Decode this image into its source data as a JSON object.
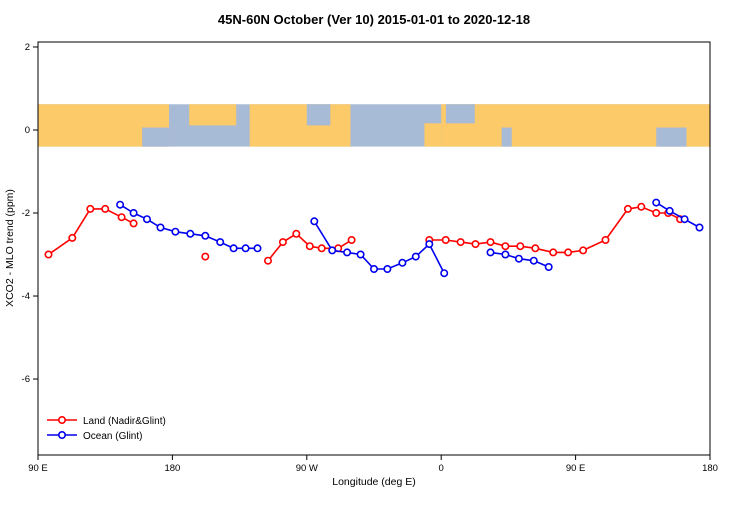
{
  "chart_data": {
    "type": "line",
    "title": "45N-60N October (Ver 10)   2015-01-01 to 2020-12-18",
    "xlabel": "Longitude (deg E)",
    "ylabel": "XCO2 - MLO trend (ppm)",
    "xlim_deg_east": [
      90,
      540
    ],
    "ylim": [
      -7.83,
      2.12
    ],
    "grid": false,
    "x_ticks": [
      {
        "deg": 90,
        "label": "90 E"
      },
      {
        "deg": 180,
        "label": "180"
      },
      {
        "deg": 270,
        "label": "90 W"
      },
      {
        "deg": 360,
        "label": "0"
      },
      {
        "deg": 450,
        "label": "90 E"
      },
      {
        "deg": 540,
        "label": "180"
      }
    ],
    "y_ticks": [
      {
        "value": 2,
        "label": "2"
      },
      {
        "value": 0,
        "label": "0"
      },
      {
        "value": -2,
        "label": "-2"
      },
      {
        "value": -4,
        "label": "-4"
      },
      {
        "value": -6,
        "label": "-6"
      }
    ],
    "map_band": {
      "description": "world coastline strip for 45N-60N drawn across y=0",
      "ppm_top": 0.62,
      "ppm_bottom": -0.4,
      "ocean_color": "#a7bad6",
      "land_color": "#fcca69",
      "land_patches": [
        [
          0.0,
          0.195,
          0.0,
          1.0
        ],
        [
          0.225,
          0.295,
          0.0,
          0.5
        ],
        [
          0.315,
          0.465,
          0.0,
          1.0
        ],
        [
          0.575,
          0.6,
          0.45,
          1.0
        ],
        [
          0.6,
          1.0,
          0.0,
          1.0
        ]
      ],
      "ocean_notches": [
        [
          0.155,
          0.195,
          0.55,
          1.0
        ],
        [
          0.4,
          0.435,
          0.0,
          0.5
        ],
        [
          0.607,
          0.65,
          0.0,
          0.45
        ],
        [
          0.69,
          0.705,
          0.55,
          1.0
        ],
        [
          0.92,
          0.965,
          0.55,
          1.0
        ]
      ]
    },
    "series": [
      {
        "name": "Land (Nadir&Glint)",
        "color": "#ff0000",
        "marker": "open-circle",
        "segments": [
          {
            "lon_deg": [
              97,
              113,
              125,
              135,
              146,
              154
            ],
            "ppm": [
              -3.0,
              -2.6,
              -1.9,
              -1.9,
              -2.1,
              -2.25
            ]
          },
          {
            "lon_deg": [
              202
            ],
            "ppm": [
              -3.05
            ]
          },
          {
            "lon_deg": [
              244,
              254,
              263,
              272,
              280,
              291,
              300
            ],
            "ppm": [
              -3.15,
              -2.7,
              -2.5,
              -2.8,
              -2.85,
              -2.85,
              -2.65
            ]
          },
          {
            "lon_deg": [
              352,
              363,
              373,
              383,
              393,
              403,
              413,
              423,
              435,
              445,
              455,
              470,
              485,
              494,
              504,
              512,
              520
            ],
            "ppm": [
              -2.65,
              -2.65,
              -2.7,
              -2.75,
              -2.7,
              -2.8,
              -2.8,
              -2.85,
              -2.95,
              -2.95,
              -2.9,
              -2.65,
              -1.9,
              -1.85,
              -2.0,
              -2.0,
              -2.15
            ]
          }
        ]
      },
      {
        "name": "Ocean (Glint)",
        "color": "#0000ee",
        "marker": "open-circle",
        "segments": [
          {
            "lon_deg": [
              145,
              154,
              163,
              172,
              182,
              192,
              202,
              212,
              221,
              229,
              237
            ],
            "ppm": [
              -1.8,
              -2.0,
              -2.15,
              -2.35,
              -2.45,
              -2.5,
              -2.55,
              -2.7,
              -2.85,
              -2.85,
              -2.85
            ]
          },
          {
            "lon_deg": [
              275,
              287,
              297,
              306,
              315,
              324,
              334,
              343,
              352,
              362
            ],
            "ppm": [
              -2.2,
              -2.9,
              -2.95,
              -3.0,
              -3.35,
              -3.35,
              -3.2,
              -3.05,
              -2.75,
              -3.45
            ]
          },
          {
            "lon_deg": [
              393,
              403,
              412,
              422,
              432
            ],
            "ppm": [
              -2.95,
              -3.0,
              -3.1,
              -3.15,
              -3.3
            ]
          },
          {
            "lon_deg": [
              504,
              513,
              523,
              533
            ],
            "ppm": [
              -1.75,
              -1.95,
              -2.15,
              -2.35
            ]
          }
        ]
      }
    ],
    "legend": {
      "position": "bottom-left",
      "entries": [
        {
          "label": "Land (Nadir&Glint)",
          "color": "#ff0000"
        },
        {
          "label": "Ocean (Glint)",
          "color": "#0000ee"
        }
      ]
    }
  }
}
